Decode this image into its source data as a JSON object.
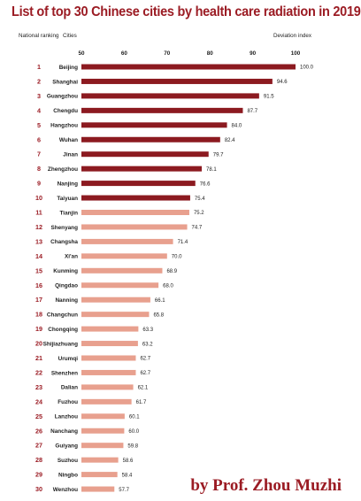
{
  "title": "List of top 30 Chinese cities by health care radiation in 2019",
  "footer": "by Prof. Zhou Muzhi",
  "chart_data": {
    "type": "bar",
    "orientation": "horizontal",
    "title": "List of top 30 Chinese cities by health care radiation in 2019",
    "rank_header": "National ranking",
    "category_header": "Cities",
    "value_header": "Deviation index",
    "xticks": [
      50,
      60,
      70,
      80,
      90,
      100
    ],
    "xlim": [
      50,
      100
    ],
    "grid": false,
    "colors": {
      "top": "#8c1a20",
      "rest": "#e8a08e",
      "text": "#9b1c24"
    },
    "top_group_size": 10,
    "ranks": [
      "1",
      "2",
      "3",
      "4",
      "5",
      "6",
      "7",
      "8",
      "9",
      "10",
      "11",
      "12",
      "13",
      "14",
      "15",
      "16",
      "17",
      "18",
      "19",
      "20",
      "21",
      "22",
      "23",
      "24",
      "25",
      "26",
      "27",
      "28",
      "29",
      "30"
    ],
    "categories": [
      "Beijing",
      "Shanghai",
      "Guangzhou",
      "Chengdu",
      "Hangzhou",
      "Wuhan",
      "Jinan",
      "Zhengzhou",
      "Nanjing",
      "Taiyuan",
      "Tianjin",
      "Shenyang",
      "Changsha",
      "Xi'an",
      "Kunming",
      "Qingdao",
      "Nanning",
      "Changchun",
      "Chongqing",
      "Shijiazhuang",
      "Urumqi",
      "Shenzhen",
      "Dalian",
      "Fuzhou",
      "Lanzhou",
      "Nanchang",
      "Guiyang",
      "Suzhou",
      "Ningbo",
      "Wenzhou"
    ],
    "values": [
      100.0,
      94.6,
      91.5,
      87.7,
      84.0,
      82.4,
      79.7,
      78.1,
      76.6,
      75.4,
      75.2,
      74.7,
      71.4,
      70.0,
      68.9,
      68.0,
      66.1,
      65.8,
      63.3,
      63.2,
      62.7,
      62.7,
      62.1,
      61.7,
      60.1,
      60.0,
      59.8,
      58.6,
      58.4,
      57.7
    ],
    "value_labels": [
      "100.0",
      "94.6",
      "91.5",
      "87.7",
      "84.0",
      "82.4",
      "79.7",
      "78.1",
      "76.6",
      "75.4",
      "75.2",
      "74.7",
      "71.4",
      "70.0",
      "68.9",
      "68.0",
      "66.1",
      "65.8",
      "63.3",
      "63.2",
      "62.7",
      "62.7",
      "62.1",
      "61.7",
      "60.1",
      "60.0",
      "59.8",
      "58.6",
      "58.4",
      "57.7"
    ]
  }
}
